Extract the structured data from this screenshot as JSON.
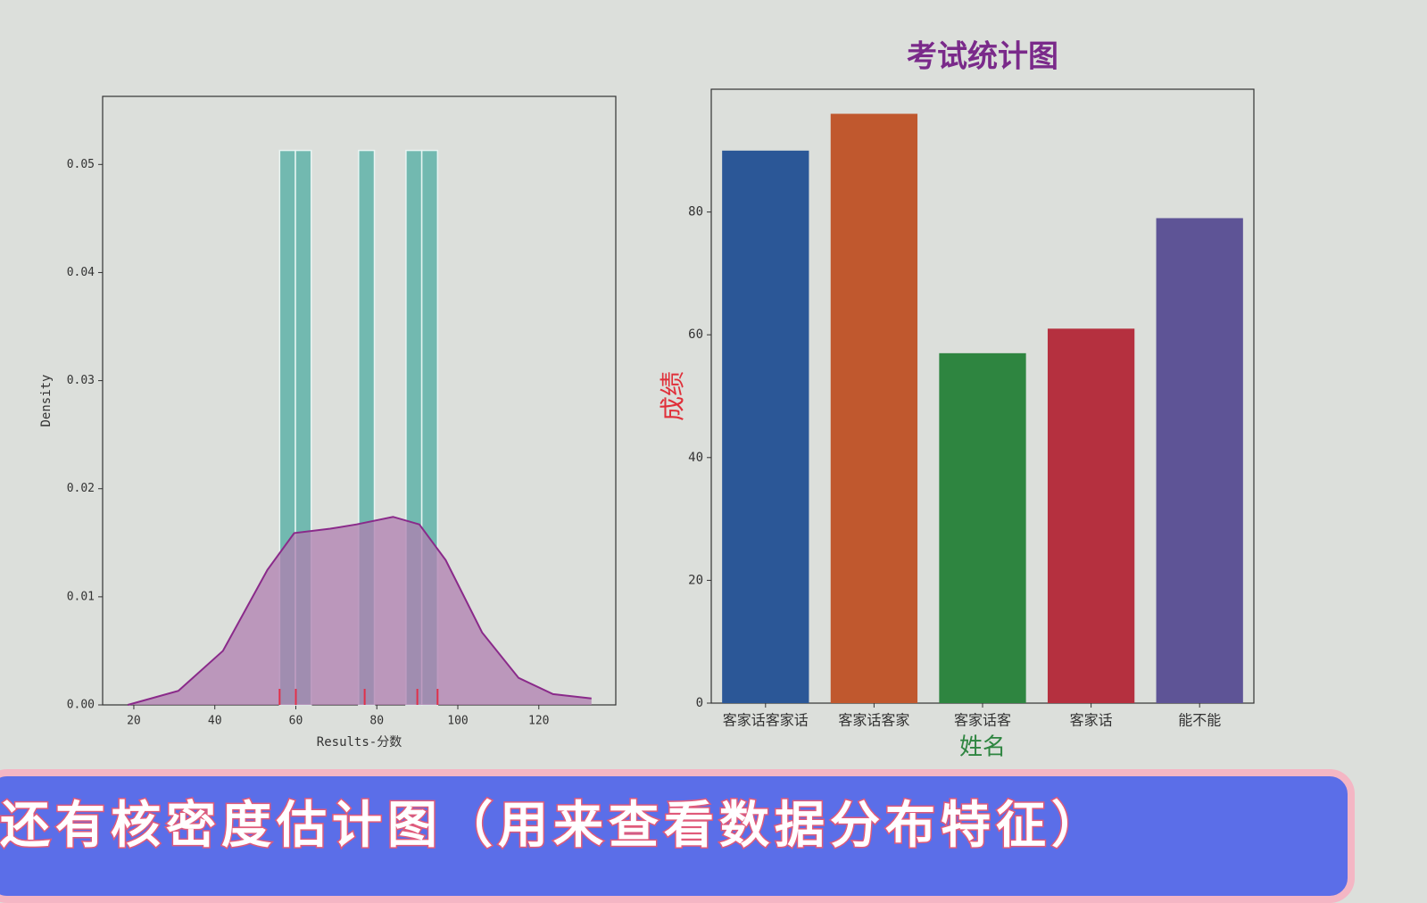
{
  "chart_data": [
    {
      "type": "histogram",
      "xlabel": "Results-分数",
      "ylabel": "Density",
      "bins": [
        56,
        59.9,
        63.8,
        67.7,
        71.6,
        75.5,
        79.4,
        83.3,
        87.2,
        91.1,
        95
      ],
      "values": [
        0.0513,
        0.0513,
        0,
        0,
        0,
        0.0513,
        0,
        0,
        0.0513,
        0.0513
      ],
      "color": "#5fb3a8",
      "kde": {
        "x": [
          18.5,
          31,
          42,
          53,
          59.6,
          68.5,
          75,
          84,
          90.5,
          97,
          106,
          115,
          123.5,
          133
        ],
        "y": [
          0,
          0.0013,
          0.005,
          0.0125,
          0.0159,
          0.0163,
          0.0167,
          0.0174,
          0.0167,
          0.0134,
          0.0067,
          0.0025,
          0.001,
          0.0006
        ],
        "color": "#8a2a8a",
        "fill": "#b07fb0"
      },
      "rug": {
        "values": [
          56,
          60,
          77,
          90,
          95
        ],
        "color": "#e0304a"
      },
      "xlim": [
        12.3,
        139
      ],
      "ylim": [
        0,
        0.0563
      ],
      "xticks": [
        20,
        40,
        60,
        80,
        100,
        120
      ],
      "yticks": [
        {
          "value": 0,
          "label": "0.00"
        },
        0.01,
        0.02,
        0.03,
        0.04,
        0.05
      ]
    },
    {
      "type": "bar",
      "title": "考试统计图",
      "title_color": "#7a2a8a",
      "xlabel": "姓名",
      "xlabel_color": "#2e8540",
      "ylabel": "成绩",
      "ylabel_color": "#e0303a",
      "categories": [
        "客家话客家话",
        "客家话客家",
        "客家话客",
        "客家话",
        "能不能"
      ],
      "values": [
        90,
        96,
        57,
        61,
        79
      ],
      "colors": [
        "#2b5797",
        "#c0582e",
        "#2e8540",
        "#b5303f",
        "#5e5496"
      ],
      "ylim": [
        0,
        100
      ],
      "yticks": [
        0,
        20,
        40,
        60,
        80
      ]
    }
  ],
  "caption": "还有核密度估计图（用来查看数据分布特征）"
}
